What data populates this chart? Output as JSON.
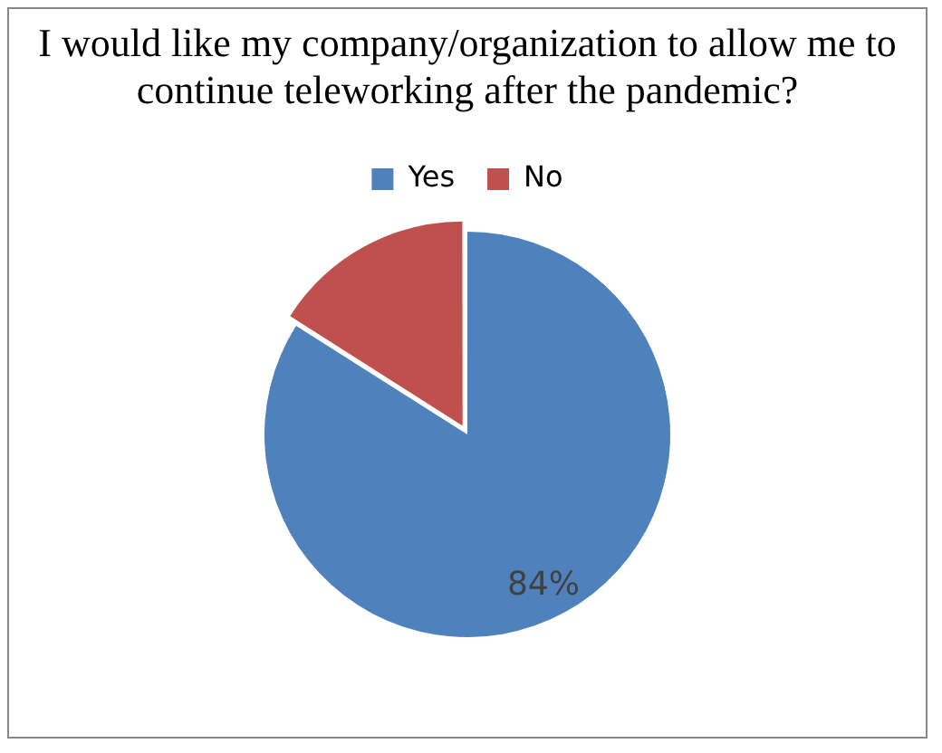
{
  "chart_data": {
    "type": "pie",
    "title": "I would like my company/organization to allow me to continue teleworking after the pandemic?",
    "categories": [
      "Yes",
      "No"
    ],
    "values": [
      84,
      16
    ],
    "colors": [
      "#4f81bd",
      "#c0504d"
    ],
    "value_labels": [
      "84%",
      null
    ],
    "legend": "top"
  }
}
